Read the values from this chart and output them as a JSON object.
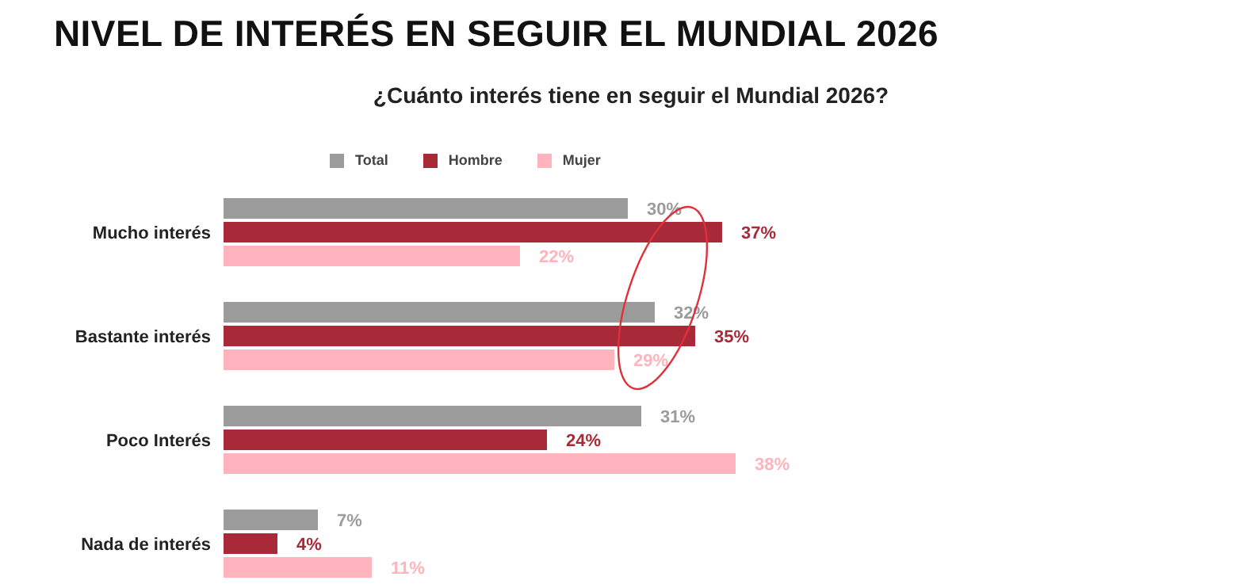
{
  "chart_data": {
    "type": "bar",
    "orientation": "horizontal",
    "title": "NIVEL DE INTERÉS EN SEGUIR EL MUNDIAL 2026",
    "subtitle": "¿Cuánto interés tiene en seguir el Mundial 2026?",
    "categories": [
      "Mucho interés",
      "Bastante interés",
      "Poco Interés",
      "Nada de interés"
    ],
    "series": [
      {
        "name": "Total",
        "color": "#9b9b9b",
        "values": [
          30,
          32,
          31,
          7
        ],
        "value_labels": [
          "30%",
          "32%",
          "31%",
          "7%"
        ]
      },
      {
        "name": "Hombre",
        "color": "#a82a38",
        "values": [
          37,
          35,
          24,
          4
        ],
        "value_labels": [
          "37%",
          "35%",
          "24%",
          "4%"
        ]
      },
      {
        "name": "Mujer",
        "color": "#ffb3bc",
        "values": [
          22,
          29,
          38,
          11
        ],
        "value_labels": [
          "22%",
          "29%",
          "38%",
          "11%"
        ]
      }
    ],
    "legend": "top left",
    "grid": false,
    "tick_labels": "y"
  }
}
